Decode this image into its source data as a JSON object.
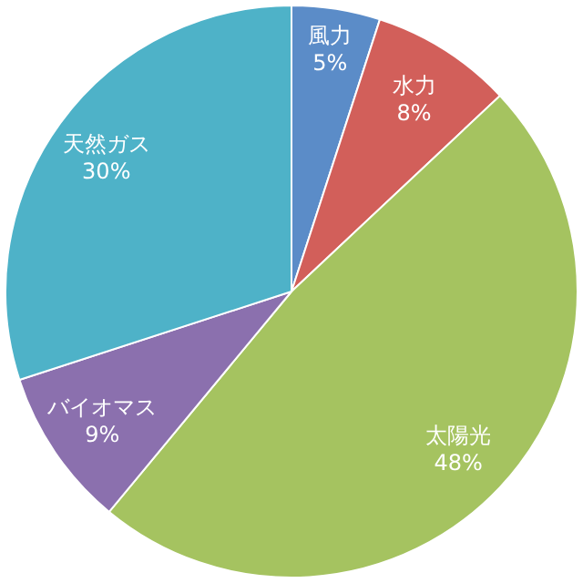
{
  "chart_data": {
    "type": "pie",
    "categories": [
      "風力",
      "水力",
      "太陽光",
      "バイオマス",
      "天然ガス"
    ],
    "values": [
      5,
      8,
      48,
      9,
      30
    ],
    "colors": [
      "#5b8cc8",
      "#d25f5a",
      "#a5c360",
      "#8b70ae",
      "#4eb2c8"
    ],
    "value_labels": [
      "5%",
      "8%",
      "48%",
      "9%",
      "30%"
    ]
  }
}
